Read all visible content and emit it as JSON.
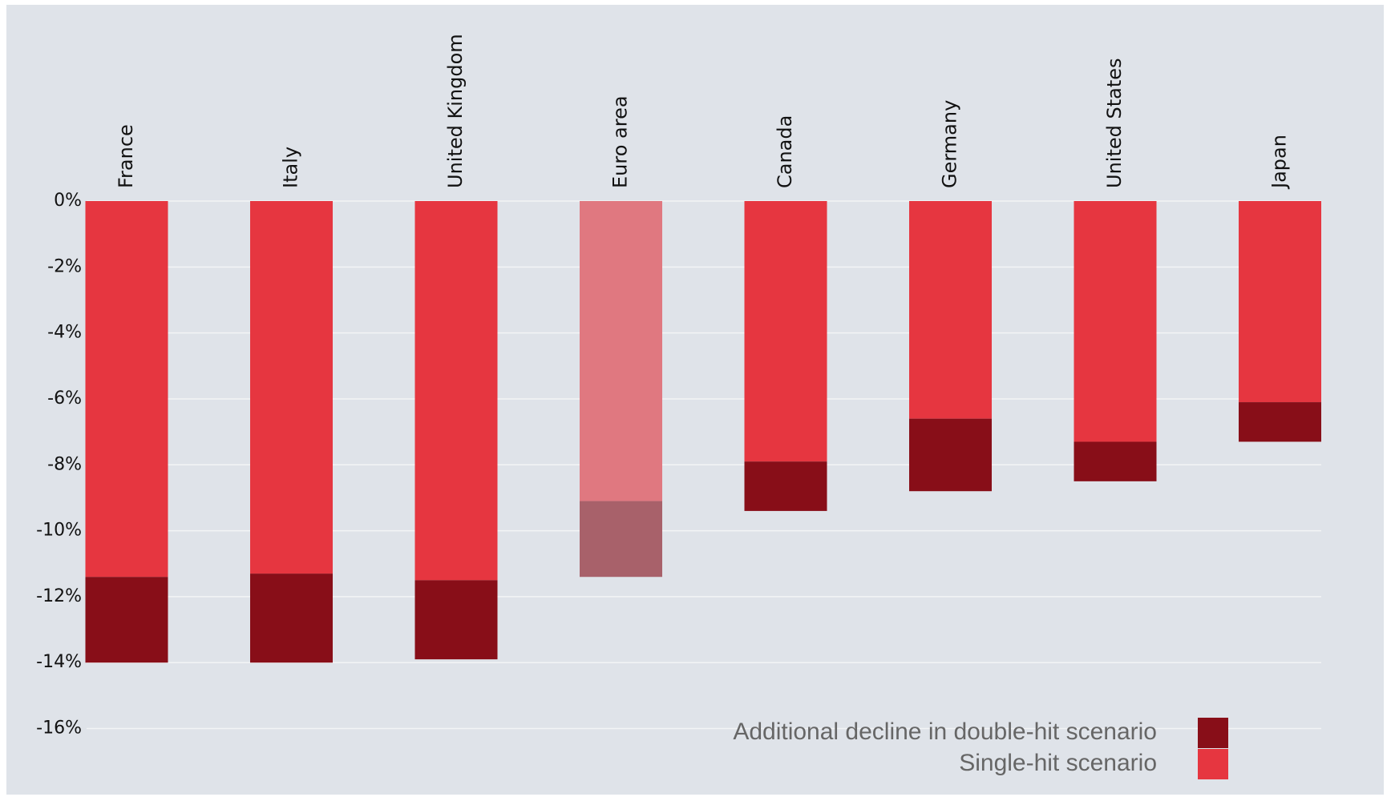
{
  "chart_data": {
    "type": "stacked_bar",
    "categories": [
      "France",
      "Italy",
      "United Kingdom",
      "Euro area",
      "Canada",
      "Germany",
      "United States",
      "Japan"
    ],
    "series": [
      {
        "name": "Single-hit scenario",
        "color": "#e63640",
        "colors": [
          "#e63640",
          "#e63640",
          "#e63640",
          "#e07880",
          "#e63640",
          "#e63640",
          "#e63640",
          "#e63640"
        ],
        "values": [
          -11.4,
          -11.3,
          -11.5,
          -9.1,
          -7.9,
          -6.6,
          -7.3,
          -6.1
        ]
      },
      {
        "name": "Additional decline in double-hit scenario",
        "color": "#880e18",
        "colors": [
          "#880e18",
          "#880e18",
          "#880e18",
          "#a8616a",
          "#880e18",
          "#880e18",
          "#880e18",
          "#880e18"
        ],
        "values": [
          -2.6,
          -2.7,
          -2.4,
          -2.3,
          -1.5,
          -2.2,
          -1.2,
          -1.2
        ]
      }
    ],
    "ylim": [
      -18,
      0
    ],
    "yticks": [
      {
        "value": 0,
        "label": "0%"
      },
      {
        "value": -2,
        "label": "-2%"
      },
      {
        "value": -4,
        "label": "-4%"
      },
      {
        "value": -6,
        "label": "-6%"
      },
      {
        "value": -8,
        "label": "-8%"
      },
      {
        "value": -10,
        "label": "-10%"
      },
      {
        "value": -12,
        "label": "-12%"
      },
      {
        "value": -14,
        "label": "-14%"
      },
      {
        "value": -16,
        "label": "-16%"
      }
    ],
    "grid": true,
    "legend": "bottom-right"
  }
}
